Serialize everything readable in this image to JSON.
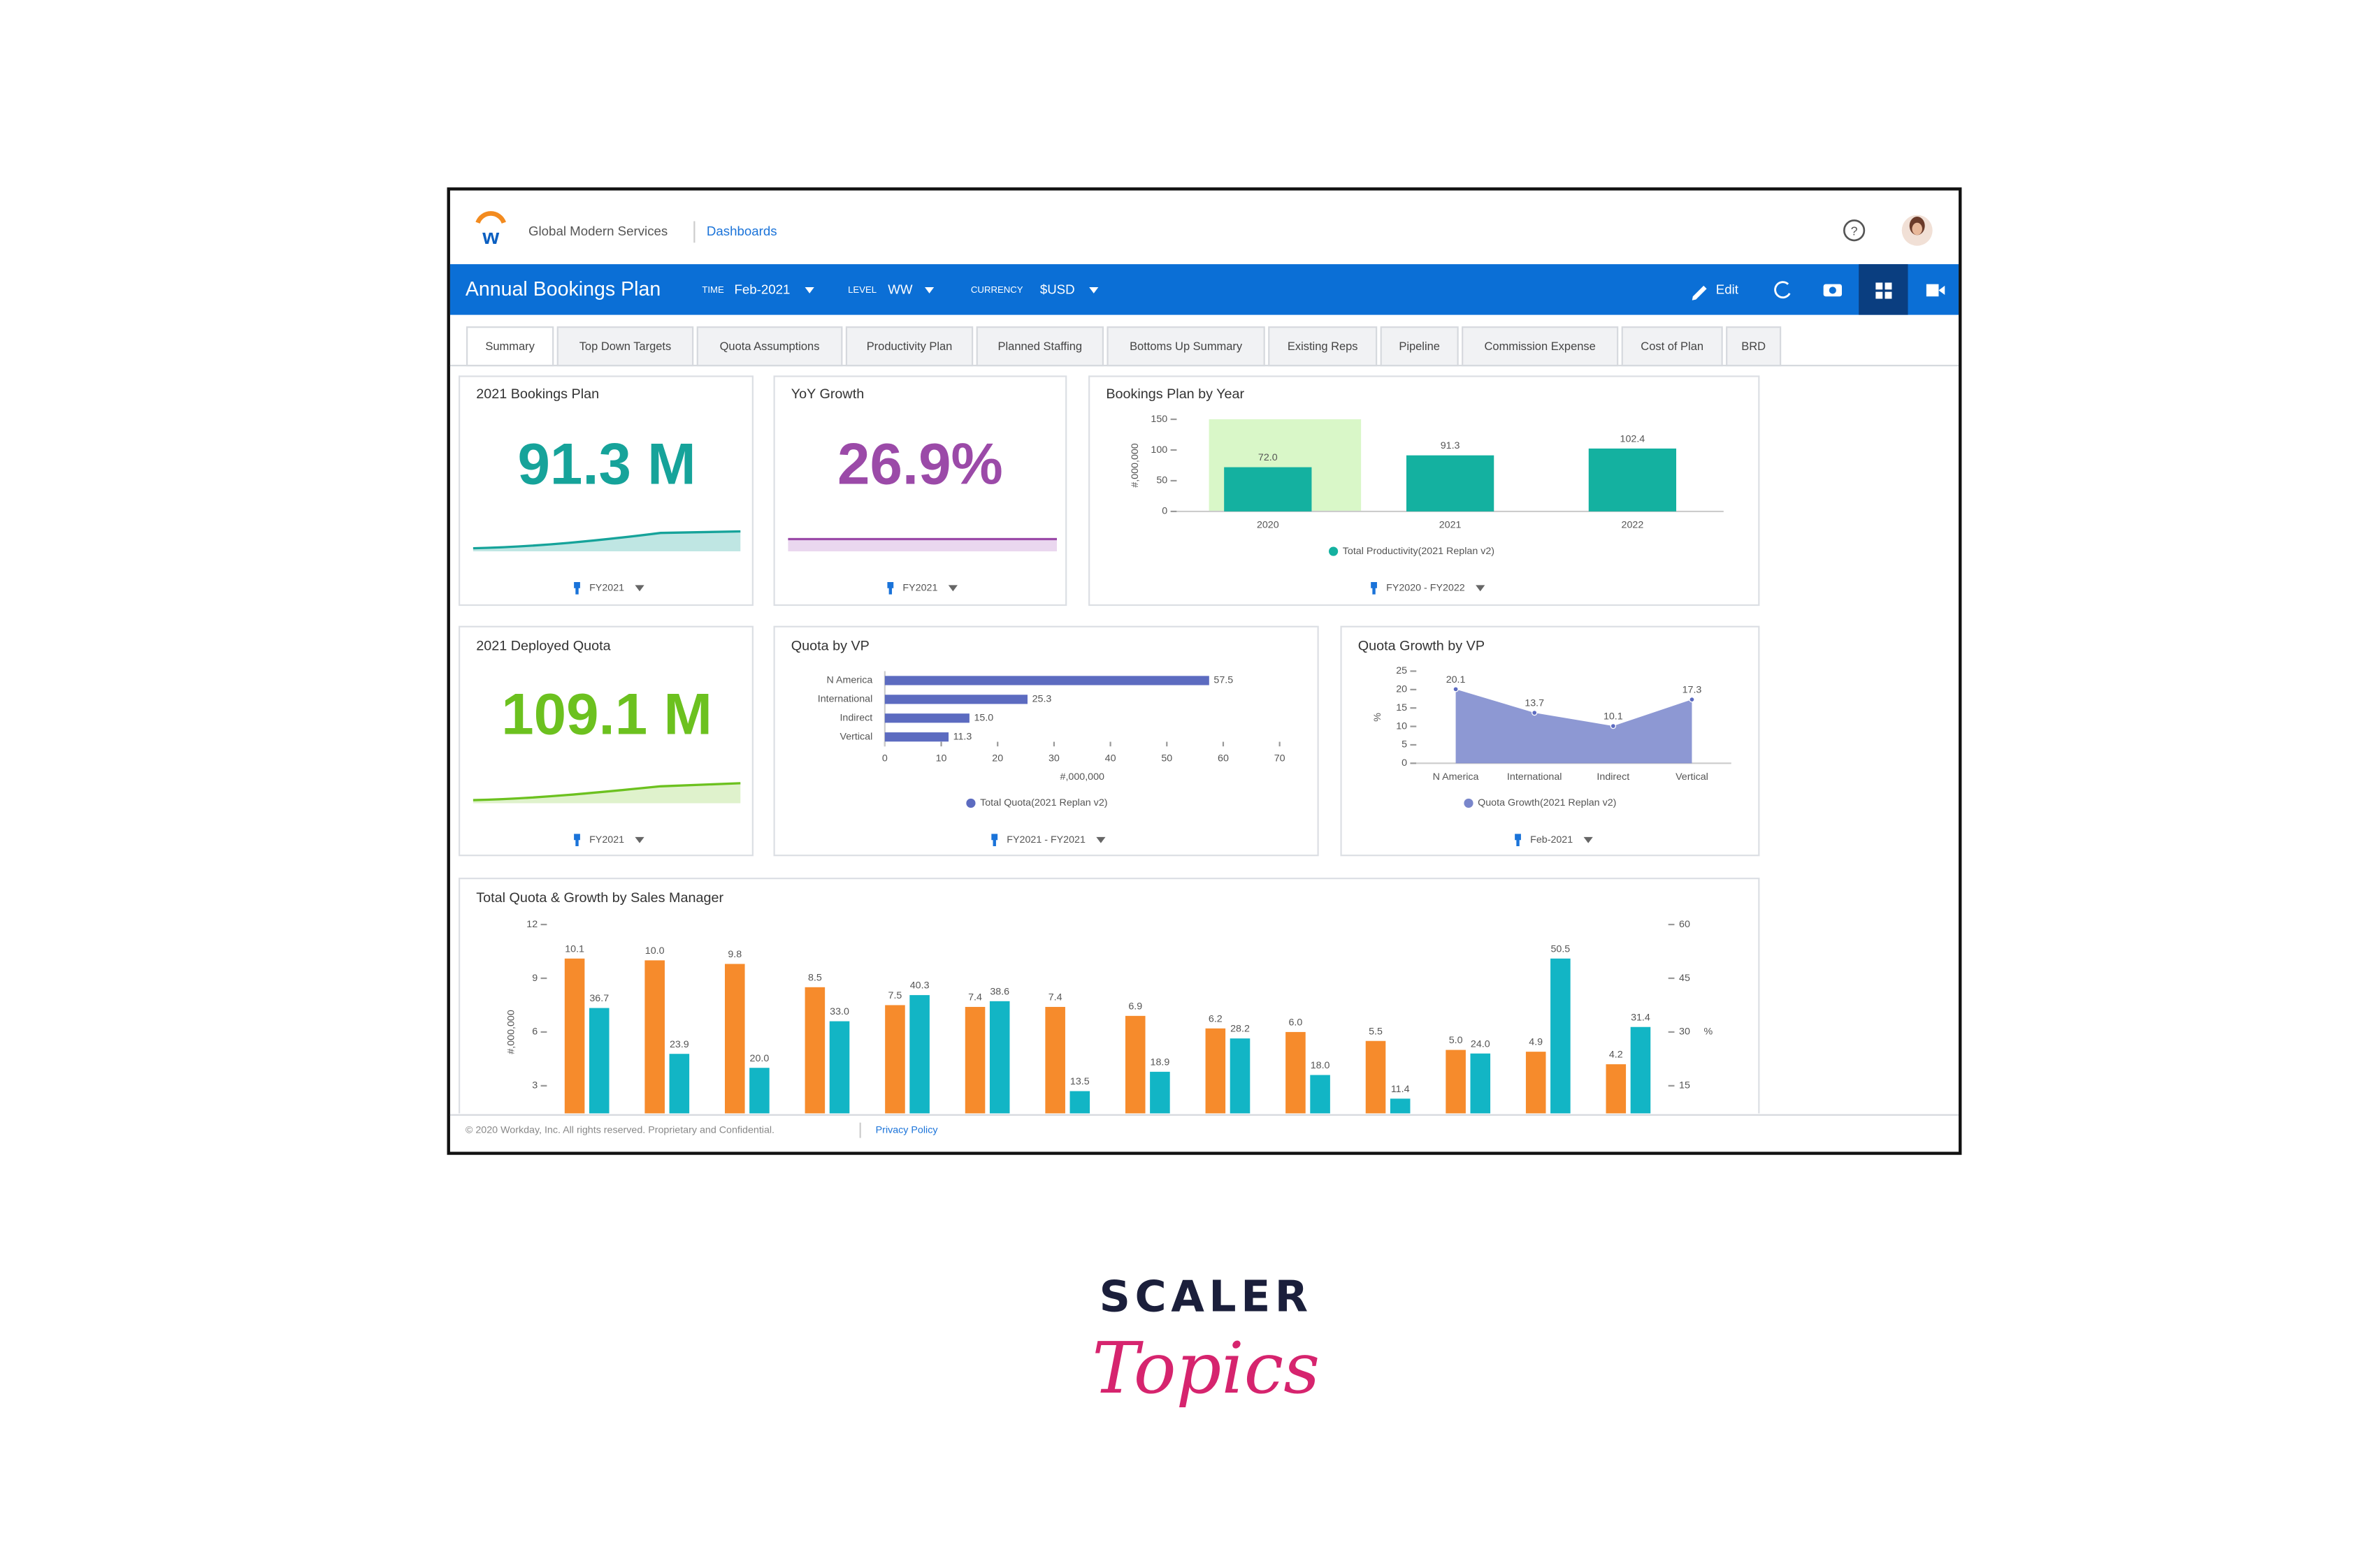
{
  "header": {
    "company": "Global Modern Services",
    "link": "Dashboards"
  },
  "toolbar": {
    "title": "Annual Bookings Plan",
    "filters": [
      {
        "label": "TIME",
        "value": "Feb-2021"
      },
      {
        "label": "LEVEL",
        "value": "WW"
      },
      {
        "label": "CURRENCY",
        "value": "$USD"
      }
    ],
    "edit": "Edit"
  },
  "tabs": [
    "Summary",
    "Top Down Targets",
    "Quota Assumptions",
    "Productivity Plan",
    "Planned Staffing",
    "Bottoms Up Summary",
    "Existing Reps",
    "Pipeline",
    "Commission Expense",
    "Cost of Plan",
    "BRD"
  ],
  "kpis": [
    {
      "title": "2021 Bookings Plan",
      "value": "91.3 M",
      "filter": "FY2021",
      "color": "#16a39a"
    },
    {
      "title": "YoY Growth",
      "value": "26.9%",
      "filter": "FY2021",
      "color": "#9b4aa8"
    },
    {
      "title": "2021 Deployed Quota",
      "value": "109.1 M",
      "filter": "FY2021",
      "color": "#6cc11f"
    }
  ],
  "chart_data": [
    {
      "type": "bar",
      "title": "Bookings Plan by Year",
      "filter": "FY2020 - FY2022",
      "ylabel": "#,000,000",
      "categories": [
        "2020",
        "2021",
        "2022"
      ],
      "series": [
        {
          "name": "Total Productivity(2021 Replan v2)",
          "color": "#14b1a0",
          "values": [
            72.0,
            91.3,
            102.4
          ],
          "value_labels": [
            "72.0",
            "91.3",
            "102.4"
          ]
        }
      ],
      "ylim": [
        0,
        150
      ],
      "yticks": [
        0,
        50,
        100,
        150
      ]
    },
    {
      "type": "barh",
      "title": "Quota by VP",
      "filter": "FY2021 - FY2021",
      "xlabel": "#,000,000",
      "categories": [
        "N America",
        "International",
        "Indirect",
        "Vertical"
      ],
      "series": [
        {
          "name": "Total Quota(2021 Replan v2)",
          "color": "#5c6bc0",
          "values": [
            57.5,
            25.3,
            15.0,
            11.3
          ],
          "value_labels": [
            "57.5",
            "25.3",
            "15.0",
            "11.3"
          ]
        }
      ],
      "xlim": [
        0,
        70
      ],
      "xticks": [
        0,
        10,
        20,
        30,
        40,
        50,
        60,
        70
      ]
    },
    {
      "type": "area",
      "title": "Quota Growth by VP",
      "filter": "Feb-2021",
      "ylabel": "%",
      "categories": [
        "N America",
        "International",
        "Indirect",
        "Vertical"
      ],
      "series": [
        {
          "name": "Quota Growth(2021 Replan v2)",
          "color": "#7986cb",
          "values": [
            20.1,
            13.7,
            10.1,
            17.3
          ],
          "value_labels": [
            "20.1",
            "13.7",
            "10.1",
            "17.3"
          ]
        }
      ],
      "ylim": [
        0,
        25
      ],
      "yticks": [
        0,
        5,
        10,
        15,
        20,
        25
      ]
    },
    {
      "type": "bar",
      "title": "Total Quota & Growth by Sales Manager",
      "ylabel": "#,000,000",
      "y2label": "%",
      "categories": [
        null,
        null,
        null,
        null,
        null,
        null,
        null,
        null,
        null,
        null,
        null,
        null,
        null,
        null
      ],
      "series": [
        {
          "color": "#f68b2c",
          "values": [
            10.1,
            10.0,
            9.8,
            8.5,
            7.5,
            7.4,
            7.4,
            6.9,
            6.2,
            6.0,
            5.5,
            5.0,
            4.9,
            4.2
          ],
          "value_labels": [
            "10.1",
            "10.0",
            "9.8",
            "8.5",
            "7.5",
            "7.4",
            "7.4",
            "6.9",
            "6.2",
            "6.0",
            "5.5",
            "5.0",
            "4.9",
            "4.2"
          ]
        },
        {
          "color": "#12b5c5",
          "axis": "y2",
          "values": [
            36.7,
            23.9,
            20.0,
            33.0,
            40.3,
            38.6,
            13.5,
            18.9,
            28.2,
            18.0,
            11.4,
            24.0,
            50.5,
            31.4
          ],
          "value_labels": [
            "36.7",
            "23.9",
            "20.0",
            "33.0",
            "40.3",
            "38.6",
            "13.5",
            "18.9",
            "28.2",
            "18.0",
            "11.4",
            "24.0",
            "50.5",
            "31.4"
          ]
        }
      ],
      "ylim": [
        0,
        12
      ],
      "yticks": [
        3,
        6,
        9,
        12
      ],
      "y2lim": [
        0,
        60
      ],
      "y2ticks": [
        15,
        30,
        45,
        60
      ]
    }
  ],
  "footer": {
    "copyright": "© 2020 Workday, Inc. All rights reserved. Proprietary and Confidential.",
    "link": "Privacy Policy"
  },
  "brand": {
    "name": "SCALER",
    "tagline": "Topics"
  }
}
